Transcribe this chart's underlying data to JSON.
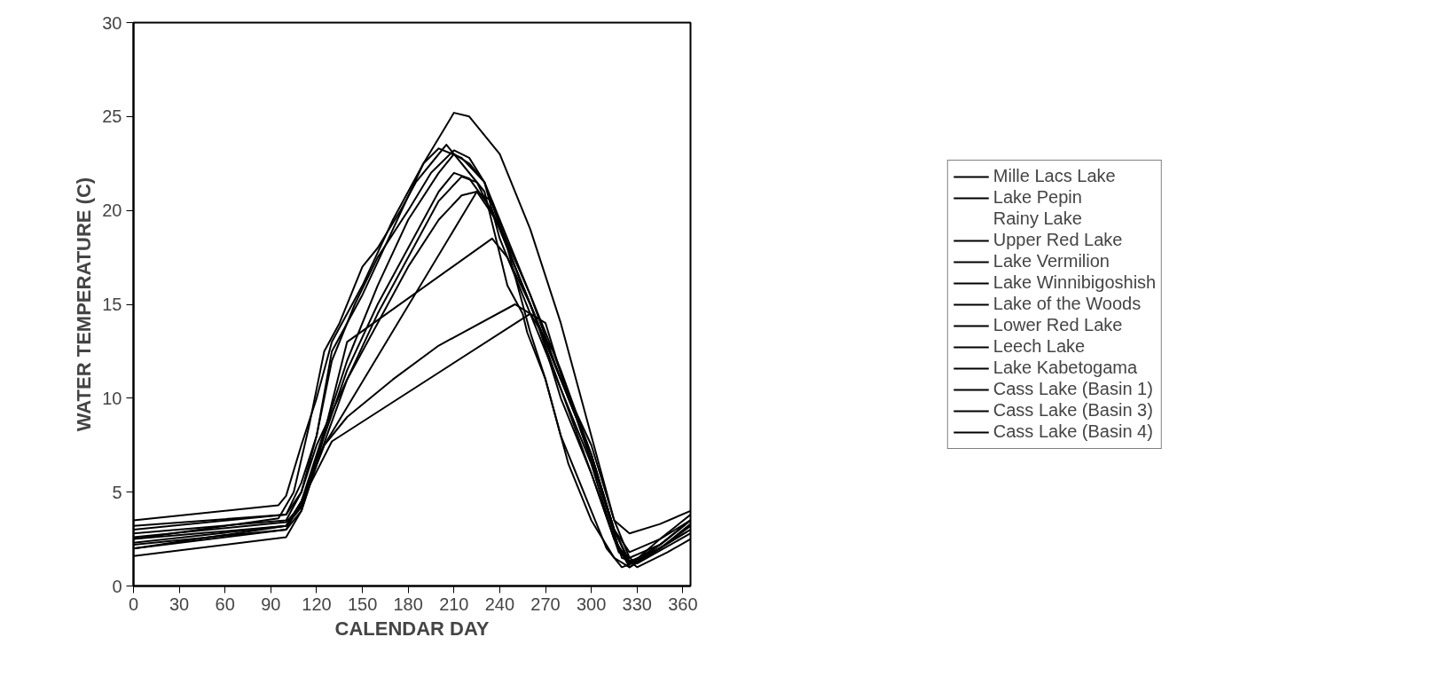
{
  "chart_data": {
    "type": "line",
    "xlabel": "CALENDAR DAY",
    "ylabel": "WATER TEMPERATURE (C)",
    "xlim": [
      0,
      365
    ],
    "ylim": [
      0,
      30
    ],
    "xticks": [
      0,
      30,
      60,
      90,
      120,
      150,
      180,
      210,
      240,
      270,
      300,
      330,
      360
    ],
    "yticks": [
      0,
      5,
      10,
      15,
      20,
      25,
      30
    ],
    "grid": false,
    "legend": "right",
    "marker": "none",
    "line_style": "solid",
    "series": [
      {
        "name": "Mille Lacs Lake",
        "color": "#000000",
        "x": [
          0,
          100,
          110,
          120,
          140,
          160,
          180,
          200,
          210,
          220,
          230,
          240,
          260,
          280,
          300,
          315,
          325,
          340,
          365
        ],
        "values": [
          2.5,
          3.2,
          4.5,
          7,
          12,
          16,
          19.5,
          22,
          23,
          22.5,
          21.5,
          19.5,
          15.5,
          11,
          7,
          3,
          1.2,
          1.8,
          3
        ]
      },
      {
        "name": "Lake Pepin",
        "color": "#000000",
        "x": [
          0,
          95,
          100,
          110,
          120,
          130,
          150,
          170,
          190,
          210,
          220,
          240,
          260,
          280,
          300,
          315,
          325,
          345,
          365
        ],
        "values": [
          3.5,
          4.3,
          4.8,
          7.5,
          10,
          13,
          16,
          19.5,
          22.5,
          25.2,
          25,
          23,
          19,
          14,
          8,
          3.5,
          2.8,
          3.3,
          4
        ]
      },
      {
        "name": "Rainy Lake"
      },
      {
        "name": "Upper Red Lake",
        "color": "#000000",
        "x": [
          0,
          100,
          110,
          120,
          130,
          150,
          170,
          190,
          200,
          215,
          230,
          245,
          260,
          270,
          285,
          300,
          315,
          325,
          345,
          365
        ],
        "values": [
          3,
          3.8,
          5.5,
          8,
          12.5,
          15.5,
          19,
          22.5,
          23.3,
          22.8,
          21.5,
          18,
          13.5,
          11,
          6.5,
          3.5,
          1.5,
          1,
          2,
          3.2
        ]
      },
      {
        "name": "Lake Vermilion",
        "color": "#000000",
        "x": [
          0,
          100,
          110,
          120,
          140,
          160,
          180,
          200,
          215,
          225,
          240,
          260,
          280,
          300,
          315,
          325,
          345,
          365
        ],
        "values": [
          2.2,
          3,
          4,
          6.5,
          11,
          14.5,
          17.5,
          20.5,
          21.8,
          21.5,
          19,
          15,
          11,
          7.5,
          3.5,
          1.5,
          2.2,
          3.5
        ]
      },
      {
        "name": "Lake Winnibigoshish",
        "color": "#000000",
        "x": [
          0,
          100,
          110,
          125,
          225,
          235,
          250,
          270,
          290,
          305,
          318,
          328,
          345,
          365
        ],
        "values": [
          2.6,
          3.4,
          4.3,
          7.5,
          21,
          20.5,
          17,
          13,
          9,
          5.5,
          2,
          1.3,
          2.5,
          3.8
        ]
      },
      {
        "name": "Lake of the Woods",
        "color": "#000000",
        "x": [
          0,
          100,
          110,
          120,
          140,
          235,
          245,
          260,
          280,
          300,
          318,
          330,
          350,
          365
        ],
        "values": [
          1.6,
          2.6,
          4,
          6.5,
          13,
          18.5,
          17.5,
          15,
          10.5,
          6,
          1.8,
          1,
          1.8,
          2.5
        ]
      },
      {
        "name": "Lower Red Lake",
        "color": "#000000",
        "x": [
          0,
          100,
          110,
          125,
          140,
          170,
          200,
          250,
          260,
          275,
          290,
          305,
          320,
          330,
          365
        ],
        "values": [
          2,
          3,
          4.5,
          7.5,
          9,
          11,
          12.8,
          15,
          14.5,
          12.5,
          9,
          5.5,
          1.5,
          1.2,
          2.8
        ]
      },
      {
        "name": "Leech Lake",
        "color": "#000000",
        "x": [
          0,
          100,
          110,
          130,
          260,
          270,
          285,
          300,
          315,
          325,
          345,
          365
        ],
        "values": [
          2.3,
          3.2,
          4.5,
          7.7,
          14.5,
          14,
          10,
          7,
          3,
          1.3,
          2,
          3.3
        ]
      },
      {
        "name": "Lake Kabetogama",
        "color": "#000000",
        "x": [
          0,
          100,
          110,
          120,
          140,
          160,
          180,
          200,
          215,
          225,
          240,
          260,
          280,
          300,
          315,
          325,
          345,
          365
        ],
        "values": [
          2.8,
          3.5,
          5,
          7.5,
          11,
          14,
          17,
          19.5,
          20.8,
          21,
          19.2,
          15.5,
          11.5,
          7,
          3,
          1.8,
          2.5,
          3.5
        ]
      },
      {
        "name": "Cass Lake (Basin 1)",
        "color": "#000000",
        "x": [
          0,
          95,
          105,
          115,
          125,
          135,
          150,
          160,
          175,
          185,
          195,
          205,
          215,
          230,
          245,
          255,
          258,
          270,
          280,
          290,
          300,
          310,
          320,
          330,
          350,
          365
        ],
        "values": [
          2.5,
          3.6,
          5,
          8.5,
          12.5,
          14,
          17,
          18,
          20,
          21.5,
          22.5,
          23.5,
          22.5,
          21,
          16,
          14.5,
          13.5,
          11,
          8,
          6,
          4,
          2,
          1,
          1.3,
          2.5,
          3.5
        ]
      },
      {
        "name": "Cass Lake (Basin 3)",
        "color": "#000000",
        "x": [
          0,
          100,
          110,
          120,
          130,
          145,
          160,
          180,
          195,
          210,
          220,
          230,
          240,
          260,
          280,
          300,
          315,
          325,
          345,
          365
        ],
        "values": [
          3.2,
          3.8,
          5,
          8,
          12,
          15,
          17.5,
          20,
          22,
          23.2,
          22.8,
          21.5,
          18.5,
          14.5,
          10.5,
          6.5,
          2.5,
          1.2,
          2.2,
          3.5
        ]
      },
      {
        "name": "Cass Lake (Basin 4)",
        "color": "#000000",
        "x": [
          0,
          100,
          110,
          120,
          140,
          160,
          180,
          200,
          210,
          220,
          235,
          250,
          265,
          280,
          300,
          315,
          325,
          345,
          365
        ],
        "values": [
          2,
          3.2,
          4.2,
          6.8,
          11.5,
          15,
          18,
          21,
          22,
          21.7,
          20,
          17,
          14,
          10,
          6,
          2.5,
          1,
          2,
          3
        ]
      }
    ]
  }
}
